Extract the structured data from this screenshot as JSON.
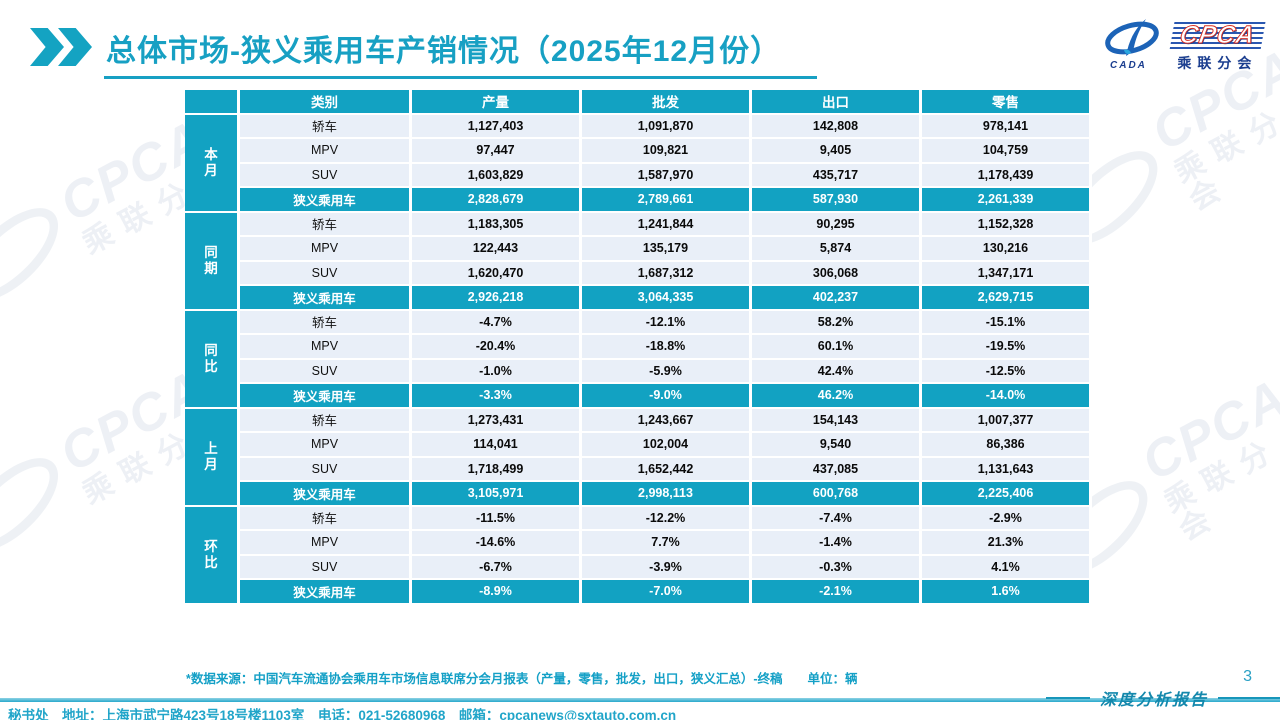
{
  "header": {
    "title": "总体市场-狭义乘用车产销情况（2025年12月份）",
    "logo": {
      "cpca": "CPCA",
      "sub": "乘联分会",
      "emblem_sub": "CADA"
    }
  },
  "table": {
    "columns": [
      "类别",
      "产量",
      "批发",
      "出口",
      "零售"
    ],
    "groups": [
      {
        "label": "本月",
        "rows": [
          {
            "category": "轿车",
            "values": [
              "1,127,403",
              "1,091,870",
              "142,808",
              "978,141"
            ]
          },
          {
            "category": "MPV",
            "values": [
              "97,447",
              "109,821",
              "9,405",
              "104,759"
            ]
          },
          {
            "category": "SUV",
            "values": [
              "1,603,829",
              "1,587,970",
              "435,717",
              "1,178,439"
            ]
          },
          {
            "category": "狭义乘用车",
            "values": [
              "2,828,679",
              "2,789,661",
              "587,930",
              "2,261,339"
            ],
            "summary": true
          }
        ]
      },
      {
        "label": "同期",
        "rows": [
          {
            "category": "轿车",
            "values": [
              "1,183,305",
              "1,241,844",
              "90,295",
              "1,152,328"
            ]
          },
          {
            "category": "MPV",
            "values": [
              "122,443",
              "135,179",
              "5,874",
              "130,216"
            ]
          },
          {
            "category": "SUV",
            "values": [
              "1,620,470",
              "1,687,312",
              "306,068",
              "1,347,171"
            ]
          },
          {
            "category": "狭义乘用车",
            "values": [
              "2,926,218",
              "3,064,335",
              "402,237",
              "2,629,715"
            ],
            "summary": true
          }
        ]
      },
      {
        "label": "同比",
        "rows": [
          {
            "category": "轿车",
            "values": [
              "-4.7%",
              "-12.1%",
              "58.2%",
              "-15.1%"
            ]
          },
          {
            "category": "MPV",
            "values": [
              "-20.4%",
              "-18.8%",
              "60.1%",
              "-19.5%"
            ]
          },
          {
            "category": "SUV",
            "values": [
              "-1.0%",
              "-5.9%",
              "42.4%",
              "-12.5%"
            ]
          },
          {
            "category": "狭义乘用车",
            "values": [
              "-3.3%",
              "-9.0%",
              "46.2%",
              "-14.0%"
            ],
            "summary": true
          }
        ]
      },
      {
        "label": "上月",
        "rows": [
          {
            "category": "轿车",
            "values": [
              "1,273,431",
              "1,243,667",
              "154,143",
              "1,007,377"
            ]
          },
          {
            "category": "MPV",
            "values": [
              "114,041",
              "102,004",
              "9,540",
              "86,386"
            ]
          },
          {
            "category": "SUV",
            "values": [
              "1,718,499",
              "1,652,442",
              "437,085",
              "1,131,643"
            ]
          },
          {
            "category": "狭义乘用车",
            "values": [
              "3,105,971",
              "2,998,113",
              "600,768",
              "2,225,406"
            ],
            "summary": true
          }
        ]
      },
      {
        "label": "环比",
        "rows": [
          {
            "category": "轿车",
            "values": [
              "-11.5%",
              "-12.2%",
              "-7.4%",
              "-2.9%"
            ]
          },
          {
            "category": "MPV",
            "values": [
              "-14.6%",
              "7.7%",
              "-1.4%",
              "21.3%"
            ]
          },
          {
            "category": "SUV",
            "values": [
              "-6.7%",
              "-3.9%",
              "-0.3%",
              "4.1%"
            ]
          },
          {
            "category": "狭义乘用车",
            "values": [
              "-8.9%",
              "-7.0%",
              "-2.1%",
              "1.6%"
            ],
            "summary": true
          }
        ]
      }
    ]
  },
  "footnote": "*数据来源：中国汽车流通协会乘用车市场信息联席分会月报表（产量，零售，批发，出口，狭义汇总）-终稿　　单位：辆",
  "footer": {
    "report_label": "深度分析报告",
    "page_number": "3",
    "contact": "秘书处　地址：上海市武宁路423号18号楼1103室　电话：021-52680968　邮箱：cpcanews@sxtauto.com.cn"
  },
  "watermark": {
    "text": "CPCA",
    "sub": "乘联分会"
  },
  "colors": {
    "teal": "#12a2c2",
    "row_bg": "#e9eff8",
    "navy": "#1b3e8f",
    "red": "#d63226"
  }
}
